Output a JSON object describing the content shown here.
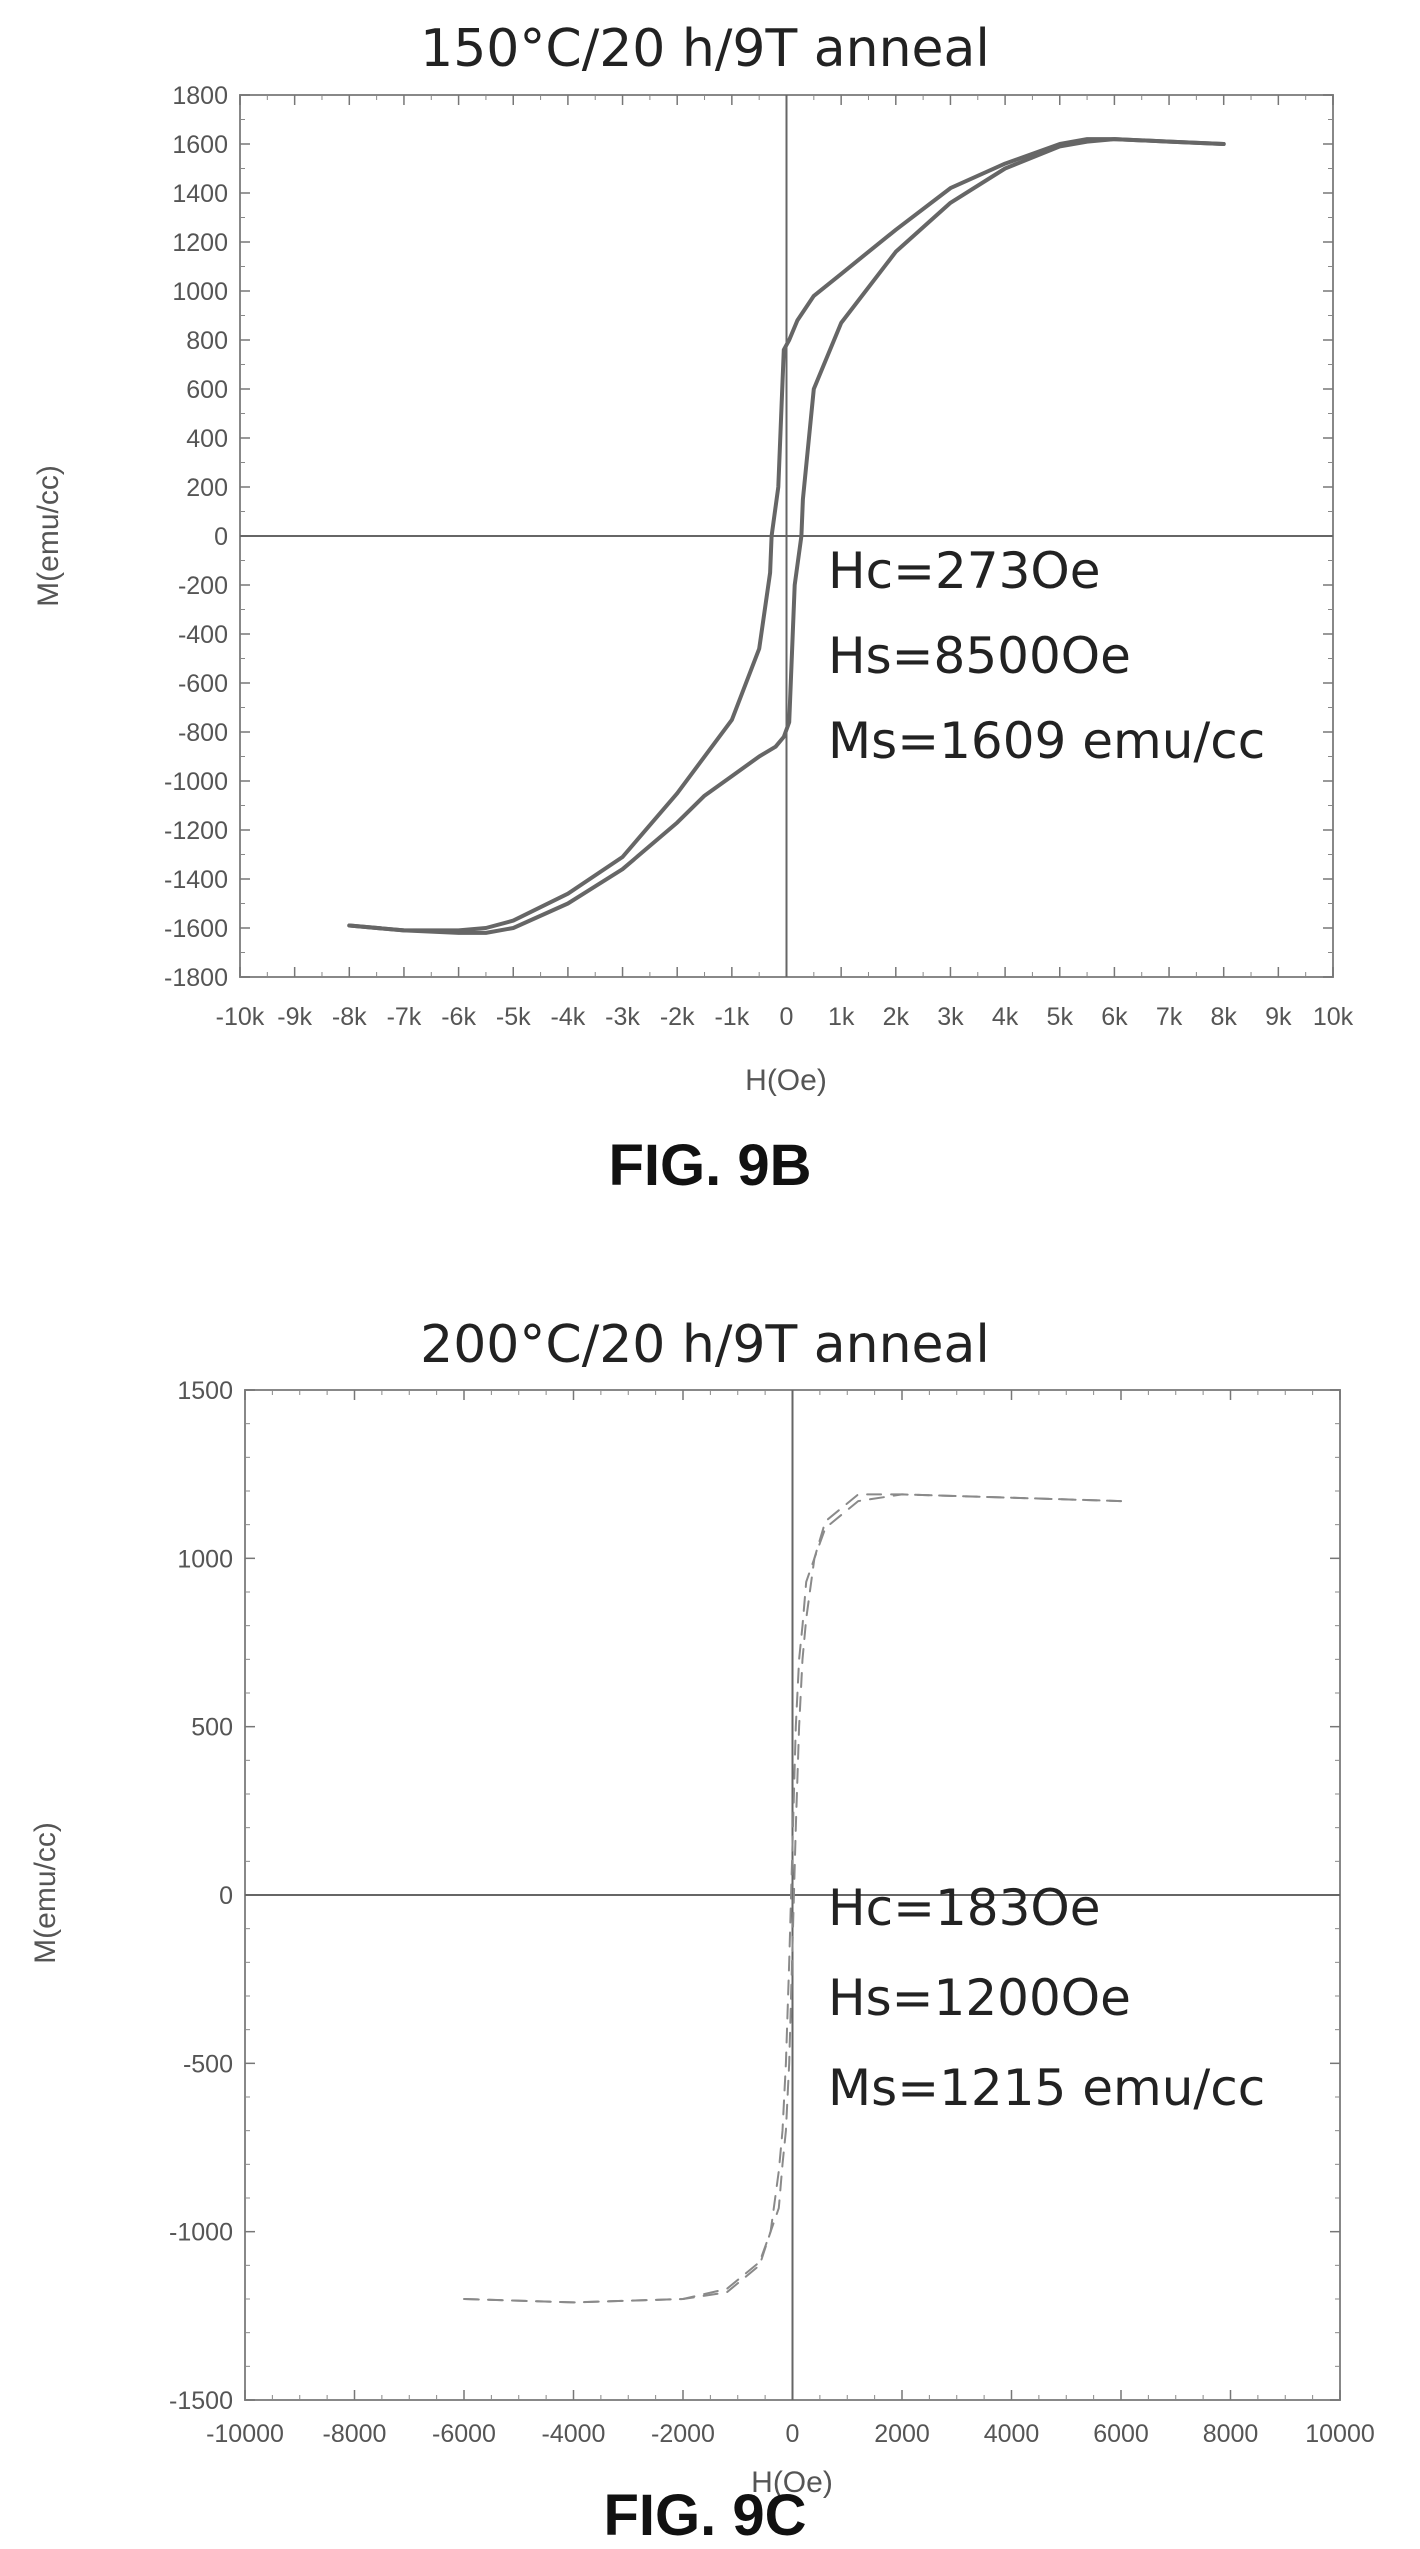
{
  "chart_data": [
    {
      "type": "line",
      "title": "150°C/20 h/9T anneal",
      "xlabel": "H(Oe)",
      "ylabel": "M(emu/cc)",
      "xlim": [
        -10000,
        10000
      ],
      "ylim": [
        -1800,
        1800
      ],
      "x_tick_labels": [
        "-10k",
        "-9k",
        "-8k",
        "-7k",
        "-6k",
        "-5k",
        "-4k",
        "-3k",
        "-2k",
        "-1k",
        "0",
        "1k",
        "2k",
        "3k",
        "4k",
        "5k",
        "6k",
        "7k",
        "8k",
        "9k",
        "10k"
      ],
      "y_tick_labels": [
        "1800",
        "1600",
        "1400",
        "1200",
        "1000",
        "800",
        "600",
        "400",
        "200",
        "0",
        "-200",
        "-400",
        "-600",
        "-800",
        "-1000",
        "-1200",
        "-1400",
        "-1600",
        "-1800"
      ],
      "grid": false,
      "annotations": [
        "Hc=273Oe",
        "Hs=8500Oe",
        "Ms=1609 emu/cc"
      ],
      "figure_label": "FIG. 9B",
      "series": [
        {
          "x": [
            8000,
            7000,
            6000,
            5500,
            5000,
            4000,
            3000,
            2000,
            1500,
            1000,
            500,
            200,
            50,
            -50,
            -150,
            -273,
            -300,
            -500,
            -1000,
            -2000,
            -3000,
            -4000,
            -5000,
            -5500,
            -6000,
            -7000,
            -8000
          ],
          "y": [
            1600,
            1610,
            1620,
            1620,
            1600,
            1520,
            1420,
            1250,
            1160,
            1070,
            980,
            880,
            800,
            760,
            200,
            0,
            -150,
            -460,
            -750,
            -1050,
            -1310,
            -1460,
            -1570,
            -1600,
            -1610,
            -1610,
            -1590
          ]
        },
        {
          "x": [
            -8000,
            -7000,
            -6000,
            -5500,
            -5000,
            -4000,
            -3000,
            -2000,
            -1500,
            -1000,
            -500,
            -200,
            -50,
            50,
            150,
            273,
            300,
            500,
            1000,
            2000,
            3000,
            4000,
            5000,
            5500,
            6000,
            7000,
            8000
          ],
          "y": [
            -1590,
            -1610,
            -1620,
            -1620,
            -1600,
            -1500,
            -1360,
            -1170,
            -1060,
            -980,
            -900,
            -860,
            -820,
            -760,
            -200,
            0,
            150,
            600,
            870,
            1160,
            1360,
            1500,
            1590,
            1610,
            1620,
            1610,
            1600
          ]
        }
      ]
    },
    {
      "type": "line",
      "title": "200°C/20 h/9T anneal",
      "xlabel": "H(Oe)",
      "ylabel": "M(emu/cc)",
      "xlim": [
        -10000,
        10000
      ],
      "ylim": [
        -1500,
        1500
      ],
      "x_tick_labels": [
        "-10000",
        "-8000",
        "-6000",
        "-4000",
        "-2000",
        "0",
        "2000",
        "4000",
        "6000",
        "8000",
        "10000"
      ],
      "y_tick_labels": [
        "1500",
        "1000",
        "500",
        "0",
        "-500",
        "-1000",
        "-1500"
      ],
      "grid": false,
      "annotations": [
        "Hc=183Oe",
        "Hs=1200Oe",
        "Ms=1215 emu/cc"
      ],
      "figure_label": "FIG. 9C",
      "series": [
        {
          "x": [
            6000,
            4000,
            2000,
            1200,
            600,
            400,
            250,
            183,
            120,
            60,
            -60,
            -120,
            -183,
            -250,
            -400,
            -600,
            -1200,
            -2000,
            -4000,
            -6000
          ],
          "y": [
            1170,
            1180,
            1190,
            1190,
            1110,
            1000,
            930,
            800,
            700,
            500,
            -200,
            -500,
            -700,
            -820,
            -1000,
            -1090,
            -1170,
            -1200,
            -1210,
            -1200
          ]
        },
        {
          "x": [
            -6000,
            -4000,
            -2000,
            -1200,
            -600,
            -400,
            -250,
            -183,
            -120,
            -60,
            60,
            120,
            183,
            250,
            400,
            600,
            1200,
            2000,
            4000,
            6000
          ],
          "y": [
            -1200,
            -1210,
            -1200,
            -1180,
            -1100,
            -1000,
            -930,
            -800,
            -700,
            -500,
            200,
            500,
            700,
            820,
            1000,
            1090,
            1170,
            1190,
            1180,
            1170
          ]
        }
      ]
    }
  ]
}
